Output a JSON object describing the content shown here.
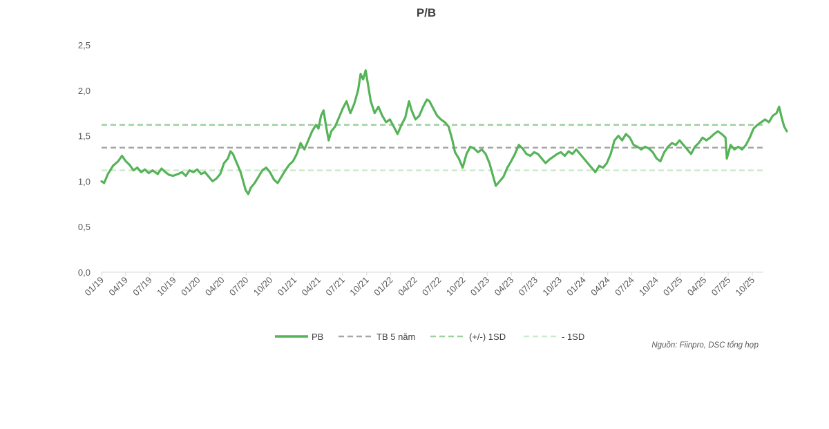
{
  "colors": {
    "pb": "#55b358",
    "mean": "#a6a6a6",
    "plus_sd": "#9bd19d",
    "minus_sd": "#cbe9cc",
    "axis": "#d9d9d9"
  },
  "source": "Nguồn: Fiinpro, DSC tổng hợp",
  "chart_data": {
    "type": "line",
    "title": "P/B",
    "xlabel": "",
    "ylabel": "",
    "ylim": [
      0,
      2.5
    ],
    "yticks": [
      "0,0",
      "0,5",
      "1,0",
      "1,5",
      "2,0",
      "2,5"
    ],
    "x_start": "01/19",
    "x_end": "12/25",
    "categories": [
      "01/19",
      "04/19",
      "07/19",
      "10/19",
      "01/20",
      "04/20",
      "07/20",
      "10/20",
      "01/21",
      "04/21",
      "07/21",
      "10/21",
      "01/22",
      "04/22",
      "07/22",
      "10/22",
      "01/23",
      "04/23",
      "07/23",
      "10/23",
      "01/24",
      "04/24",
      "07/24",
      "10/24",
      "01/25",
      "04/25",
      "07/25",
      "10/25"
    ],
    "legend": [
      "PB",
      "TB 5 năm",
      "(+/-) 1SD",
      "- 1SD"
    ],
    "series": [
      {
        "name": "PB",
        "style": "solid",
        "points": [
          [
            0.0,
            1.0
          ],
          [
            0.2,
            0.98
          ],
          [
            0.5,
            1.08
          ],
          [
            0.9,
            1.17
          ],
          [
            1.3,
            1.22
          ],
          [
            1.6,
            1.28
          ],
          [
            1.9,
            1.22
          ],
          [
            2.2,
            1.18
          ],
          [
            2.5,
            1.12
          ],
          [
            2.8,
            1.15
          ],
          [
            3.1,
            1.1
          ],
          [
            3.4,
            1.13
          ],
          [
            3.7,
            1.09
          ],
          [
            4.0,
            1.12
          ],
          [
            4.4,
            1.08
          ],
          [
            4.7,
            1.14
          ],
          [
            5.0,
            1.1
          ],
          [
            5.3,
            1.07
          ],
          [
            5.6,
            1.06
          ],
          [
            6.0,
            1.08
          ],
          [
            6.3,
            1.1
          ],
          [
            6.6,
            1.06
          ],
          [
            6.9,
            1.12
          ],
          [
            7.2,
            1.1
          ],
          [
            7.5,
            1.13
          ],
          [
            7.8,
            1.08
          ],
          [
            8.1,
            1.1
          ],
          [
            8.4,
            1.05
          ],
          [
            8.7,
            1.0
          ],
          [
            9.0,
            1.03
          ],
          [
            9.3,
            1.08
          ],
          [
            9.6,
            1.2
          ],
          [
            9.9,
            1.25
          ],
          [
            10.1,
            1.33
          ],
          [
            10.3,
            1.3
          ],
          [
            10.6,
            1.2
          ],
          [
            10.9,
            1.1
          ],
          [
            11.1,
            1.0
          ],
          [
            11.3,
            0.9
          ],
          [
            11.5,
            0.86
          ],
          [
            11.7,
            0.93
          ],
          [
            12.0,
            0.98
          ],
          [
            12.3,
            1.05
          ],
          [
            12.6,
            1.12
          ],
          [
            12.9,
            1.15
          ],
          [
            13.2,
            1.1
          ],
          [
            13.5,
            1.02
          ],
          [
            13.8,
            0.98
          ],
          [
            14.1,
            1.05
          ],
          [
            14.4,
            1.12
          ],
          [
            14.7,
            1.18
          ],
          [
            15.0,
            1.22
          ],
          [
            15.3,
            1.3
          ],
          [
            15.6,
            1.42
          ],
          [
            15.9,
            1.35
          ],
          [
            16.2,
            1.45
          ],
          [
            16.5,
            1.55
          ],
          [
            16.8,
            1.62
          ],
          [
            17.0,
            1.58
          ],
          [
            17.2,
            1.72
          ],
          [
            17.4,
            1.78
          ],
          [
            17.6,
            1.6
          ],
          [
            17.8,
            1.45
          ],
          [
            18.0,
            1.55
          ],
          [
            18.3,
            1.6
          ],
          [
            18.6,
            1.7
          ],
          [
            18.9,
            1.8
          ],
          [
            19.2,
            1.88
          ],
          [
            19.5,
            1.75
          ],
          [
            19.8,
            1.85
          ],
          [
            20.1,
            2.0
          ],
          [
            20.3,
            2.18
          ],
          [
            20.5,
            2.12
          ],
          [
            20.7,
            2.22
          ],
          [
            20.9,
            2.05
          ],
          [
            21.1,
            1.88
          ],
          [
            21.4,
            1.75
          ],
          [
            21.7,
            1.82
          ],
          [
            22.0,
            1.72
          ],
          [
            22.3,
            1.65
          ],
          [
            22.6,
            1.68
          ],
          [
            22.9,
            1.6
          ],
          [
            23.2,
            1.52
          ],
          [
            23.5,
            1.62
          ],
          [
            23.8,
            1.7
          ],
          [
            24.1,
            1.88
          ],
          [
            24.3,
            1.78
          ],
          [
            24.6,
            1.68
          ],
          [
            24.9,
            1.72
          ],
          [
            25.2,
            1.82
          ],
          [
            25.5,
            1.9
          ],
          [
            25.7,
            1.88
          ],
          [
            26.0,
            1.8
          ],
          [
            26.3,
            1.72
          ],
          [
            26.6,
            1.68
          ],
          [
            26.9,
            1.65
          ],
          [
            27.2,
            1.6
          ],
          [
            27.5,
            1.45
          ],
          [
            27.7,
            1.32
          ],
          [
            28.0,
            1.25
          ],
          [
            28.3,
            1.15
          ],
          [
            28.6,
            1.3
          ],
          [
            28.9,
            1.38
          ],
          [
            29.2,
            1.36
          ],
          [
            29.5,
            1.32
          ],
          [
            29.8,
            1.35
          ],
          [
            30.1,
            1.3
          ],
          [
            30.4,
            1.2
          ],
          [
            30.7,
            1.05
          ],
          [
            30.9,
            0.95
          ],
          [
            31.2,
            1.0
          ],
          [
            31.5,
            1.05
          ],
          [
            31.8,
            1.15
          ],
          [
            32.1,
            1.22
          ],
          [
            32.4,
            1.3
          ],
          [
            32.7,
            1.4
          ],
          [
            33.0,
            1.36
          ],
          [
            33.3,
            1.3
          ],
          [
            33.6,
            1.28
          ],
          [
            33.9,
            1.32
          ],
          [
            34.2,
            1.3
          ],
          [
            34.5,
            1.25
          ],
          [
            34.8,
            1.2
          ],
          [
            35.1,
            1.24
          ],
          [
            35.4,
            1.27
          ],
          [
            35.7,
            1.3
          ],
          [
            36.0,
            1.32
          ],
          [
            36.3,
            1.28
          ],
          [
            36.6,
            1.33
          ],
          [
            36.9,
            1.3
          ],
          [
            37.2,
            1.35
          ],
          [
            37.5,
            1.3
          ],
          [
            37.8,
            1.25
          ],
          [
            38.1,
            1.2
          ],
          [
            38.4,
            1.15
          ],
          [
            38.7,
            1.1
          ],
          [
            39.0,
            1.17
          ],
          [
            39.3,
            1.15
          ],
          [
            39.6,
            1.2
          ],
          [
            39.9,
            1.3
          ],
          [
            40.2,
            1.45
          ],
          [
            40.5,
            1.5
          ],
          [
            40.8,
            1.45
          ],
          [
            41.1,
            1.52
          ],
          [
            41.4,
            1.48
          ],
          [
            41.7,
            1.4
          ],
          [
            42.0,
            1.38
          ],
          [
            42.3,
            1.35
          ],
          [
            42.6,
            1.38
          ],
          [
            42.9,
            1.36
          ],
          [
            43.2,
            1.32
          ],
          [
            43.5,
            1.25
          ],
          [
            43.8,
            1.22
          ],
          [
            44.1,
            1.32
          ],
          [
            44.4,
            1.38
          ],
          [
            44.7,
            1.42
          ],
          [
            45.0,
            1.4
          ],
          [
            45.3,
            1.45
          ],
          [
            45.6,
            1.4
          ],
          [
            45.9,
            1.35
          ],
          [
            46.2,
            1.3
          ],
          [
            46.5,
            1.38
          ],
          [
            46.8,
            1.42
          ],
          [
            47.1,
            1.48
          ],
          [
            47.4,
            1.45
          ],
          [
            47.7,
            1.48
          ],
          [
            48.0,
            1.52
          ],
          [
            48.3,
            1.55
          ],
          [
            48.6,
            1.52
          ],
          [
            48.9,
            1.48
          ],
          [
            49.0,
            1.25
          ],
          [
            49.3,
            1.4
          ],
          [
            49.6,
            1.35
          ],
          [
            49.9,
            1.38
          ],
          [
            50.2,
            1.35
          ],
          [
            50.5,
            1.4
          ],
          [
            50.8,
            1.48
          ],
          [
            51.1,
            1.58
          ],
          [
            51.4,
            1.62
          ],
          [
            51.7,
            1.65
          ],
          [
            52.0,
            1.68
          ],
          [
            52.3,
            1.65
          ],
          [
            52.6,
            1.72
          ],
          [
            52.9,
            1.75
          ],
          [
            53.1,
            1.82
          ],
          [
            53.3,
            1.7
          ],
          [
            53.5,
            1.6
          ],
          [
            53.7,
            1.55
          ]
        ]
      },
      {
        "name": "TB 5 năm",
        "style": "dashed",
        "value": 1.37
      },
      {
        "name": "(+/-) 1SD",
        "style": "dashed",
        "value": 1.62
      },
      {
        "name": "- 1SD",
        "style": "dashed",
        "value": 1.12
      }
    ]
  }
}
